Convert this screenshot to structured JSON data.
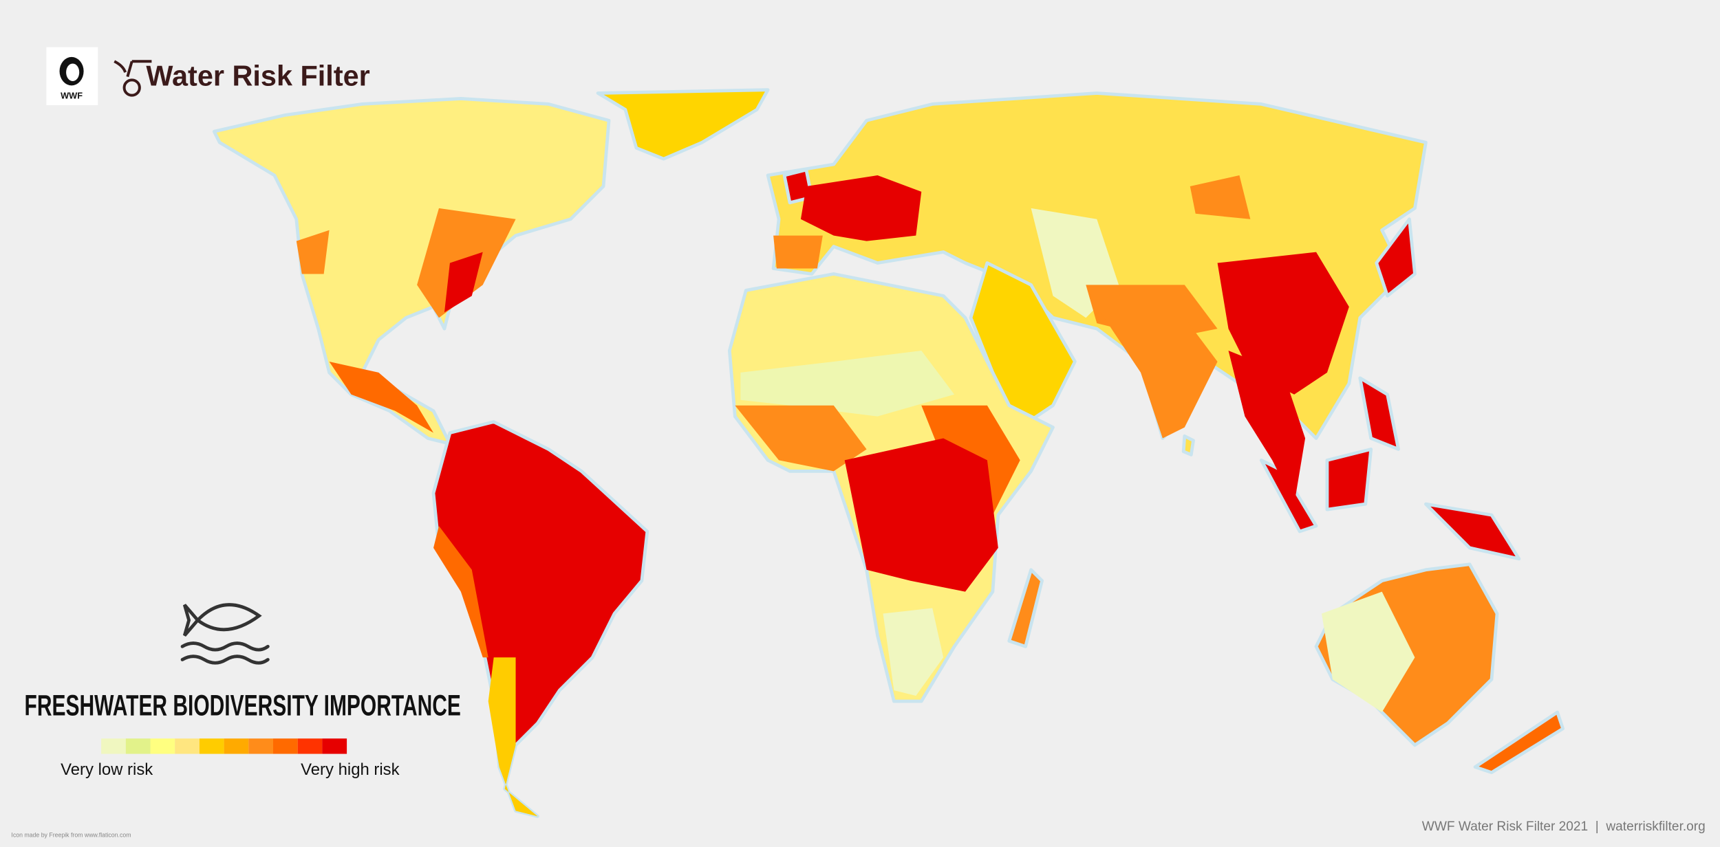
{
  "header": {
    "logo_text": "WWF",
    "title": "Water Risk Filter"
  },
  "legend": {
    "title": "FRESHWATER BIODIVERSITY IMPORTANCE",
    "colors": [
      "#f0f7c0",
      "#e2f28a",
      "#ffff80",
      "#ffe680",
      "#ffcc00",
      "#ffaa00",
      "#ff8c1a",
      "#ff6a00",
      "#ff3300",
      "#e60000"
    ],
    "low_label": "Very low risk",
    "high_label": "Very high risk"
  },
  "footer": {
    "credit": "Icon made by Freepik from www.flaticon.com",
    "source": "WWF Water Risk Filter 2021  |  waterriskfilter.org"
  }
}
